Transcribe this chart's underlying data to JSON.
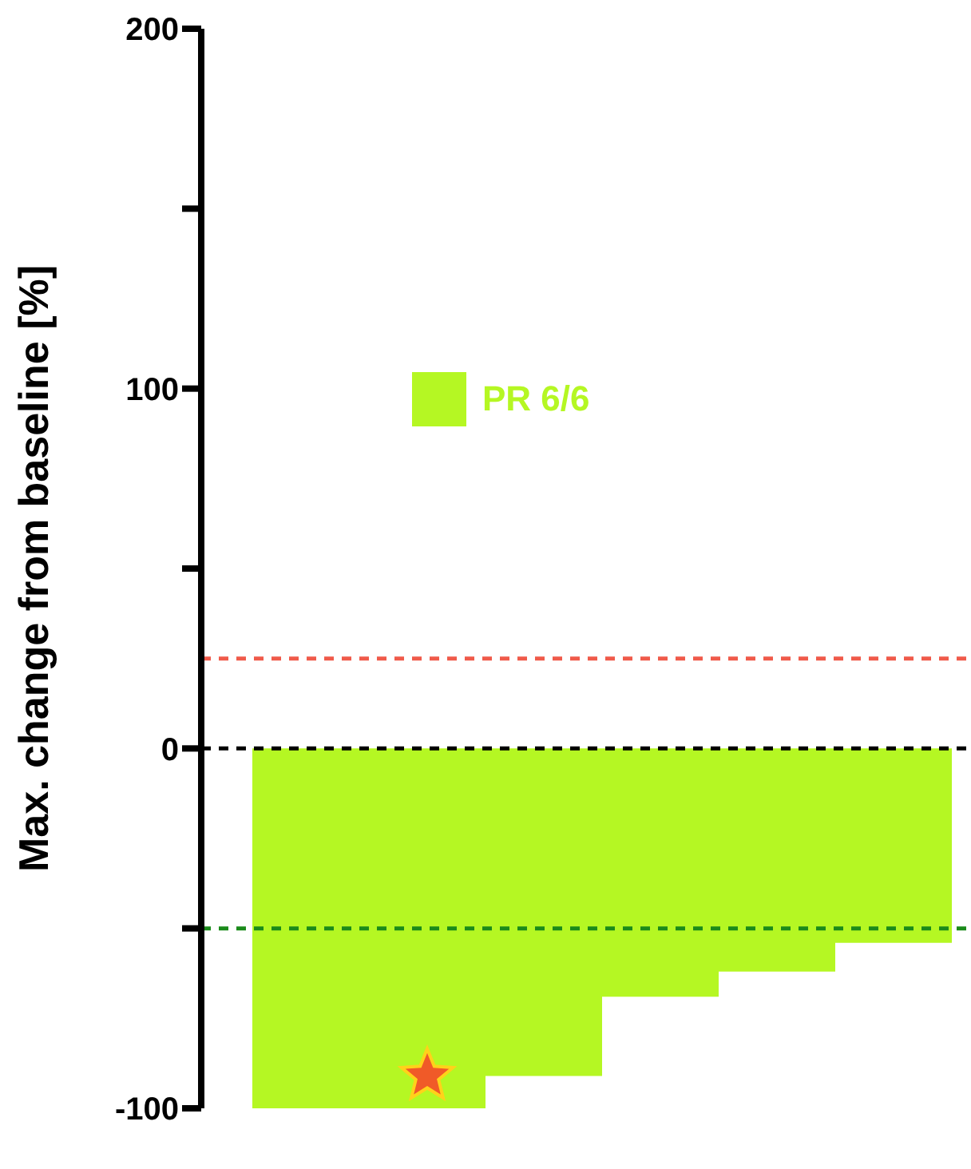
{
  "chart_data": {
    "type": "bar",
    "ylabel": "Max. change from baseline [%]",
    "categories": [
      null,
      null,
      null,
      null,
      null,
      null
    ],
    "series": [
      {
        "name": "PR 6/6",
        "color": "#b5f723",
        "values": [
          -100,
          -100,
          -91,
          -69,
          -62,
          -54
        ]
      },
      {
        "type": "scatter",
        "color": "#f05a28",
        "marker": "star",
        "values": [
          null,
          -91,
          null,
          null,
          null,
          null
        ]
      }
    ],
    "ylim": [
      -100,
      200
    ],
    "yticks": [
      -100,
      {
        "value": -50,
        "label": null
      },
      0,
      {
        "value": 50,
        "label": null
      },
      100,
      {
        "value": 150,
        "label": null
      },
      200
    ],
    "ref_lines": [
      {
        "axis": "y",
        "value": 25,
        "color": "#f05a4a",
        "line_style": "dashed"
      },
      {
        "axis": "y",
        "value": 0,
        "color": "#000000",
        "line_style": "dashed"
      },
      {
        "axis": "y",
        "value": -50,
        "color": "#1a8a1a",
        "line_style": "dashed"
      }
    ],
    "tick_labels": "y",
    "legend": "top left"
  }
}
